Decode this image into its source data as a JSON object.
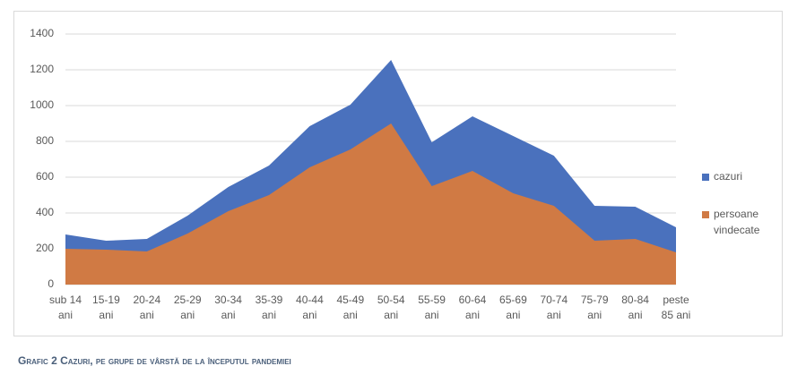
{
  "chart_data": {
    "type": "area",
    "title": "Grafic 2 Cazuri, pe grupe de vârstă de la începutul pandemiei",
    "categories": [
      "sub 14\nani",
      "15-19\nani",
      "20-24\nani",
      "25-29\nani",
      "30-34\nani",
      "35-39\nani",
      "40-44\nani",
      "45-49\nani",
      "50-54\nani",
      "55-59\nani",
      "60-64\nani",
      "65-69\nani",
      "70-74\nani",
      "75-79\nani",
      "80-84\nani",
      "peste\n85 ani"
    ],
    "series": [
      {
        "name": "cazuri",
        "color": "#4a71bd",
        "values": [
          280,
          245,
          255,
          385,
          545,
          665,
          885,
          1005,
          1255,
          795,
          940,
          830,
          720,
          440,
          435,
          320
        ]
      },
      {
        "name": "persoane vindecate",
        "color": "#d07a44",
        "values": [
          200,
          195,
          185,
          285,
          410,
          500,
          655,
          755,
          900,
          550,
          635,
          510,
          440,
          245,
          255,
          180
        ]
      }
    ],
    "ylim": [
      0,
      1400
    ],
    "yticks": [
      0,
      200,
      400,
      600,
      800,
      1000,
      1200,
      1400
    ],
    "grid": true,
    "legend": "right"
  }
}
